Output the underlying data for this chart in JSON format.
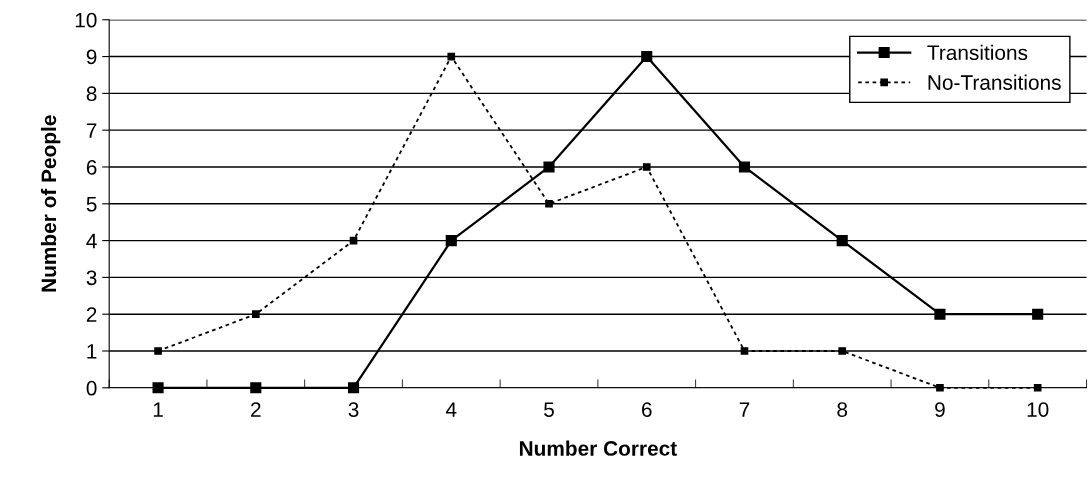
{
  "chart_data": {
    "type": "line",
    "xlabel": "Number Correct",
    "ylabel": "Number of People",
    "categories": [
      "1",
      "2",
      "3",
      "4",
      "5",
      "6",
      "7",
      "8",
      "9",
      "10"
    ],
    "series": [
      {
        "name": "Transitions",
        "color": "#000000",
        "line_style": "solid",
        "values": [
          0,
          0,
          0,
          4,
          6,
          9,
          6,
          4,
          2,
          2
        ]
      },
      {
        "name": "No-Transitions",
        "color": "#000000",
        "line_style": "dotted",
        "values": [
          1,
          2,
          4,
          9,
          5,
          6,
          1,
          1,
          0,
          0
        ]
      }
    ],
    "ylim": [
      0,
      10
    ],
    "yticks": [
      0,
      1,
      2,
      3,
      4,
      5,
      6,
      7,
      8,
      9,
      10
    ],
    "grid": "y",
    "legend": "top right",
    "marker": "square"
  }
}
